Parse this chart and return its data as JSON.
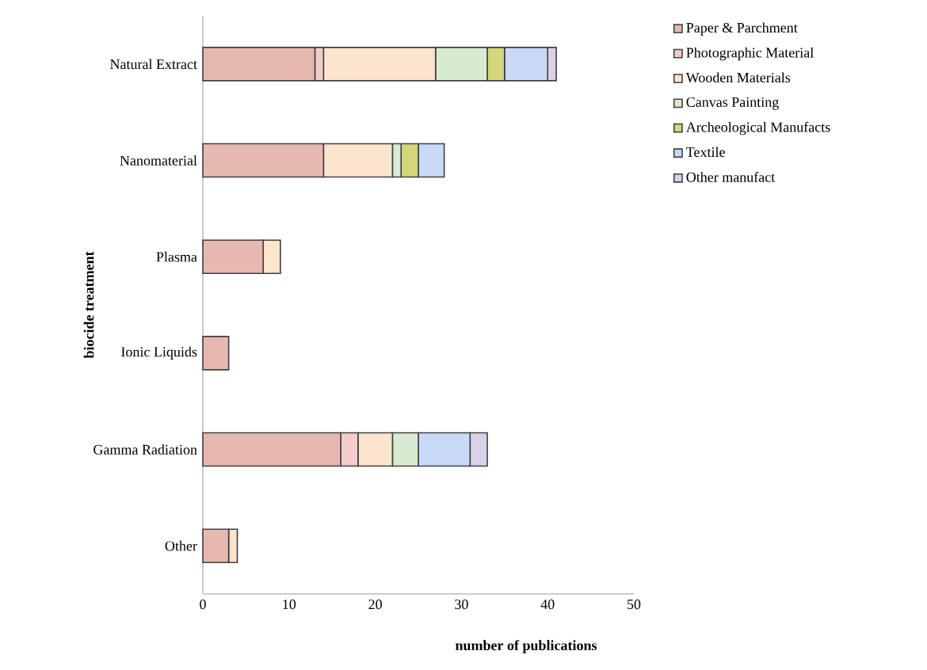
{
  "chart_data": {
    "type": "bar",
    "orientation": "horizontal",
    "stacked": true,
    "xlabel": "**number of publications**",
    "ylabel": "**biocide treatment**",
    "categories": [
      "Natural Extract",
      "Nanomaterial",
      "Plasma",
      "Ionic Liquids",
      "Gamma Radiation",
      "Other"
    ],
    "series": [
      {
        "name": "Paper & Parchment",
        "color": "#e6b8af",
        "values": [
          13,
          14,
          7,
          3,
          16,
          3
        ]
      },
      {
        "name": "Photographic Material",
        "color": "#f4cccc",
        "values": [
          1,
          0,
          0,
          0,
          2,
          0
        ]
      },
      {
        "name": "Wooden Materials",
        "color": "#fce5cd",
        "values": [
          13,
          8,
          2,
          0,
          4,
          1
        ]
      },
      {
        "name": "Canvas Painting",
        "color": "#d9ead3",
        "values": [
          6,
          1,
          0,
          0,
          3,
          0
        ]
      },
      {
        "name": "Archeological Manufacts",
        "color": "#d4d67a",
        "values": [
          2,
          2,
          0,
          0,
          0,
          0
        ]
      },
      {
        "name": "Textile",
        "color": "#c9daf8",
        "values": [
          5,
          3,
          0,
          0,
          6,
          0
        ]
      },
      {
        "name": "Other manufact",
        "color": "#d9d2e9",
        "values": [
          1,
          0,
          0,
          0,
          2,
          0
        ]
      }
    ],
    "xlim": [
      0,
      50
    ],
    "xticks": [
      0,
      10,
      20,
      30,
      40,
      50
    ],
    "grid": false,
    "legend": "right"
  }
}
